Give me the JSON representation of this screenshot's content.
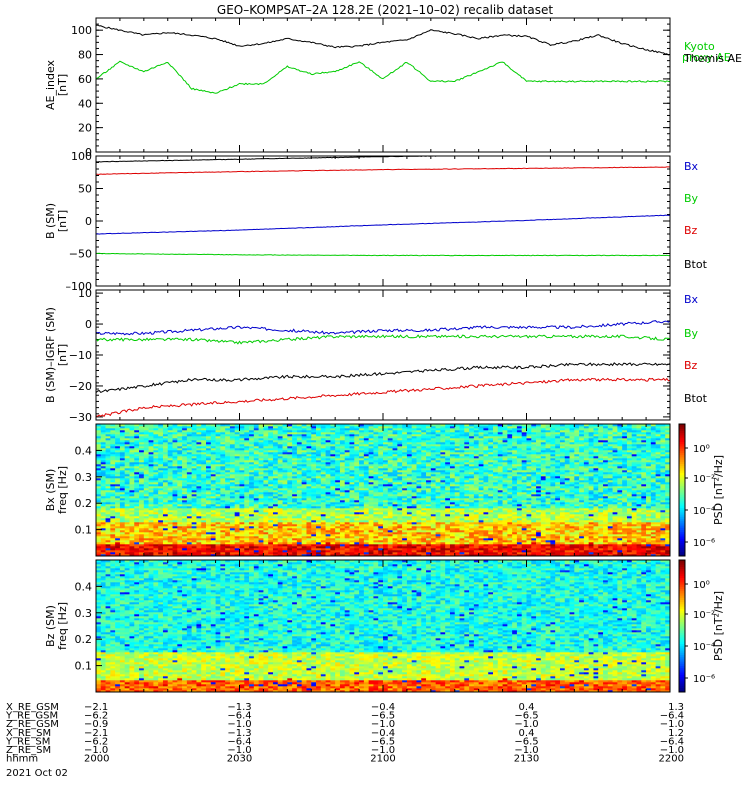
{
  "title": "GEO–KOMPSAT–2A 128.2E (2021–10–02) recalib dataset",
  "colors": {
    "black": "#000000",
    "blue": "#0000cc",
    "green": "#00cc00",
    "red": "#dd0000"
  },
  "chart_data": [
    {
      "type": "line",
      "ylabel": "AE_index [nT]",
      "ylim": [
        0,
        110
      ],
      "yticks": [
        "0",
        "20",
        "40",
        "60",
        "80",
        "100"
      ],
      "legend": [
        {
          "name": "Kyoto proxy AE",
          "color": "#00cc00"
        },
        {
          "name": "Themis AE",
          "color": "#000000"
        }
      ],
      "x_minutes": [
        0,
        5,
        10,
        15,
        20,
        25,
        30,
        35,
        40,
        45,
        50,
        55,
        60,
        65,
        70,
        75,
        80,
        85,
        90,
        95,
        100,
        105,
        110,
        115,
        120
      ],
      "series": [
        {
          "name": "Themis AE",
          "color": "#000000",
          "values": [
            104,
            100,
            96,
            98,
            96,
            93,
            87,
            89,
            93,
            90,
            86,
            87,
            90,
            92,
            100,
            97,
            93,
            96,
            95,
            88,
            91,
            96,
            89,
            84,
            80
          ]
        },
        {
          "name": "Kyoto proxy AE",
          "color": "#00cc00",
          "values": [
            60,
            74,
            66,
            74,
            52,
            48,
            56,
            56,
            70,
            64,
            66,
            74,
            60,
            74,
            58,
            58,
            66,
            74,
            58,
            58,
            58,
            58,
            58,
            58,
            58
          ]
        }
      ]
    },
    {
      "type": "line",
      "ylabel": "B (SM) [nT]",
      "ylim": [
        -100,
        100
      ],
      "yticks": [
        "–100",
        "−50",
        "0",
        "50",
        "100"
      ],
      "legend": [
        {
          "name": "Bx",
          "color": "#0000cc"
        },
        {
          "name": "By",
          "color": "#00cc00"
        },
        {
          "name": "Bz",
          "color": "#dd0000"
        },
        {
          "name": "Btot",
          "color": "#000000"
        }
      ],
      "x_minutes": [
        0,
        30,
        60,
        90,
        120
      ],
      "series": [
        {
          "name": "Bx",
          "color": "#0000cc",
          "values": [
            -20,
            -14,
            -6,
            1,
            9
          ]
        },
        {
          "name": "By",
          "color": "#00cc00",
          "values": [
            -50,
            -52,
            -53,
            -53,
            -53
          ]
        },
        {
          "name": "Bz",
          "color": "#dd0000",
          "values": [
            72,
            76,
            79,
            81,
            83
          ]
        },
        {
          "name": "Btot",
          "color": "#000000",
          "values": [
            91,
            95,
            99,
            102,
            104
          ]
        }
      ]
    },
    {
      "type": "line",
      "ylabel": "B (SM)–IGRF (SM) [nT]",
      "ylim": [
        -31,
        11
      ],
      "yticks": [
        "−30",
        "−20",
        "−10",
        "0",
        "10"
      ],
      "legend": [
        {
          "name": "Bx",
          "color": "#0000cc"
        },
        {
          "name": "By",
          "color": "#00cc00"
        },
        {
          "name": "Bz",
          "color": "#dd0000"
        },
        {
          "name": "Btot",
          "color": "#000000"
        }
      ],
      "x_minutes": [
        0,
        10,
        20,
        30,
        40,
        50,
        60,
        70,
        80,
        90,
        100,
        110,
        120
      ],
      "series": [
        {
          "name": "Bx",
          "color": "#0000cc",
          "values": [
            -3,
            -3,
            -2,
            -1,
            -2,
            -3,
            -2,
            -2,
            -1,
            -1,
            -1,
            0,
            1
          ]
        },
        {
          "name": "By",
          "color": "#00cc00",
          "values": [
            -5,
            -5,
            -5,
            -6,
            -5,
            -4,
            -4,
            -4,
            -4,
            -4,
            -4,
            -4,
            -5
          ]
        },
        {
          "name": "Bz",
          "color": "#dd0000",
          "values": [
            -30,
            -27,
            -26,
            -25,
            -24,
            -23,
            -22,
            -21,
            -20,
            -19,
            -18,
            -18,
            -18
          ]
        },
        {
          "name": "Btot",
          "color": "#000000",
          "values": [
            -22,
            -20,
            -18,
            -18,
            -17,
            -17,
            -16,
            -15,
            -14,
            -14,
            -13,
            -13,
            -13
          ]
        }
      ]
    },
    {
      "type": "heatmap",
      "ylabel": "Bx (SM) freq [Hz]",
      "ylim": [
        0,
        0.5
      ],
      "yticks": [
        "0.1",
        "0.2",
        "0.3",
        "0.4"
      ],
      "colorbar": {
        "label": "PSD [nT²/Hz]",
        "ticks": [
          "10⁰",
          "10⁻²",
          "10⁻⁴",
          "10⁻⁶"
        ]
      },
      "seed": 7
    },
    {
      "type": "heatmap",
      "ylabel": "Bz (SM) freq [Hz]",
      "ylim": [
        0,
        0.5
      ],
      "yticks": [
        "0.1",
        "0.2",
        "0.3",
        "0.4"
      ],
      "colorbar": {
        "label": "PSD [nT²/Hz]",
        "ticks": [
          "10⁰",
          "10⁻²",
          "10⁻⁴",
          "10⁻⁶"
        ]
      },
      "seed": 13
    }
  ],
  "axis_table": {
    "rows": [
      {
        "label": "X_RE_GSM",
        "values": [
          "−2.1",
          "−1.3",
          "−0.4",
          "0.4",
          "1.3"
        ]
      },
      {
        "label": "Y_RE_GSM",
        "values": [
          "−6.2",
          "−6.4",
          "−6.5",
          "−6.5",
          "−6.4"
        ]
      },
      {
        "label": "Z_RE_GSM",
        "values": [
          "−0.9",
          "−1.0",
          "−1.0",
          "−1.0",
          "−1.0"
        ]
      },
      {
        "label": "X_RE_SM",
        "values": [
          "−2.1",
          "−1.3",
          "−0.4",
          "0.4",
          "1.2"
        ]
      },
      {
        "label": "Y_RE_SM",
        "values": [
          "−6.2",
          "−6.4",
          "−6.5",
          "−6.5",
          "−6.4"
        ]
      },
      {
        "label": "Z_RE_SM",
        "values": [
          "−1.0",
          "−1.0",
          "−1.0",
          "−1.0",
          "−1.0"
        ]
      },
      {
        "label": "hhmm",
        "values": [
          "2000",
          "2030",
          "2100",
          "2130",
          "2200"
        ]
      }
    ],
    "date": "2021 Oct 02"
  }
}
